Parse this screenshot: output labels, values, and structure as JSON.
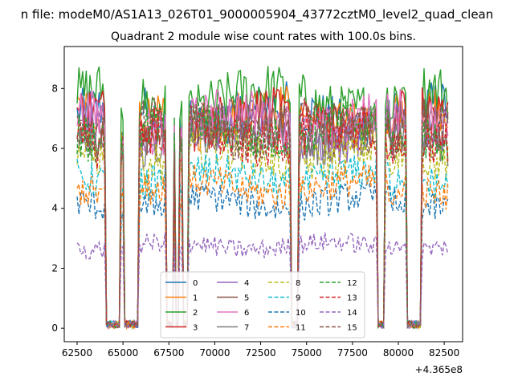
{
  "figure": {
    "suptitle": "n file: modeM0/AS1A13_026T01_9000005904_43772cztM0_level2_quad_clean",
    "title": "Quadrant 2 module wise count rates with 100.0s bins.",
    "offset_label": "+4.365e8"
  },
  "chart_data": {
    "type": "line",
    "title": "Quadrant 2 module wise count rates with 100.0s bins.",
    "xlabel": "",
    "ylabel": "",
    "x_offset": 436500000,
    "xlim": [
      61800,
      83500
    ],
    "ylim": [
      -0.45,
      9.4
    ],
    "x_ticks": [
      62500,
      65000,
      67500,
      70000,
      72500,
      75000,
      77500,
      80000,
      82500
    ],
    "y_ticks": [
      0,
      2,
      4,
      6,
      8
    ],
    "x_start": 62500,
    "x_end": 82700,
    "bin": 100,
    "grid": false,
    "legend_position": "lower center",
    "dropouts": [
      [
        64100,
        65800
      ],
      [
        67400,
        67700
      ],
      [
        67900,
        68000
      ],
      [
        68300,
        68500
      ],
      [
        74200,
        74500
      ],
      [
        78900,
        79200
      ],
      [
        80500,
        81200
      ]
    ],
    "spikes": [
      [
        64900,
        65000
      ],
      [
        67750,
        67850
      ],
      [
        68100,
        68200
      ],
      [
        79600,
        79700
      ]
    ],
    "series": [
      {
        "name": "0",
        "level": 7.1,
        "color": "#1f77b4",
        "dash": "solid"
      },
      {
        "name": "1",
        "level": 7.05,
        "color": "#ff7f0e",
        "dash": "solid"
      },
      {
        "name": "2",
        "level": 7.6,
        "color": "#2ca02c",
        "dash": "solid"
      },
      {
        "name": "3",
        "level": 6.95,
        "color": "#d62728",
        "dash": "solid"
      },
      {
        "name": "4",
        "level": 6.55,
        "color": "#9467bd",
        "dash": "solid"
      },
      {
        "name": "5",
        "level": 6.7,
        "color": "#8c564b",
        "dash": "solid"
      },
      {
        "name": "6",
        "level": 6.9,
        "color": "#e377c2",
        "dash": "solid"
      },
      {
        "name": "7",
        "level": 6.35,
        "color": "#7f7f7f",
        "dash": "solid"
      },
      {
        "name": "8",
        "level": 5.75,
        "color": "#bcbd22",
        "dash": "dashed"
      },
      {
        "name": "9",
        "level": 5.0,
        "color": "#17becf",
        "dash": "dashed"
      },
      {
        "name": "10",
        "level": 4.2,
        "color": "#1f77b4",
        "dash": "dashed"
      },
      {
        "name": "11",
        "level": 4.7,
        "color": "#ff7f0e",
        "dash": "dashed"
      },
      {
        "name": "12",
        "level": 6.6,
        "color": "#2ca02c",
        "dash": "dashed"
      },
      {
        "name": "13",
        "level": 6.4,
        "color": "#d62728",
        "dash": "dashed"
      },
      {
        "name": "14",
        "level": 2.75,
        "color": "#9467bd",
        "dash": "dashed"
      },
      {
        "name": "15",
        "level": 6.7,
        "color": "#8c564b",
        "dash": "dashed"
      }
    ]
  }
}
